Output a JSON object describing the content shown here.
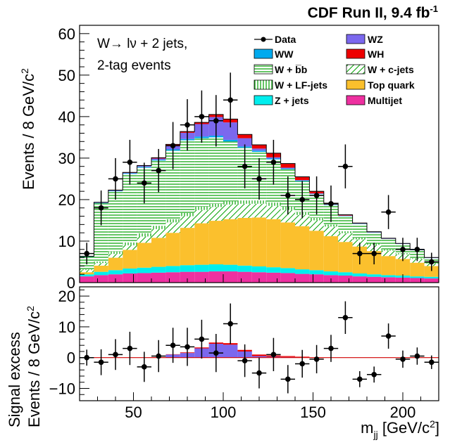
{
  "header": {
    "title": "CDF Run II, 9.4 fb",
    "title_sup": "-1"
  },
  "chart_data": [
    {
      "type": "bar",
      "stacked": true,
      "histogram": true,
      "annotation_lines": [
        "W→ lν + 2 jets,",
        "2-tag events"
      ],
      "xlabel": "m_jj [GeV/c^2]",
      "ylabel": "Events / 8 GeV/c^2",
      "xlim": [
        20,
        220
      ],
      "ylim": [
        0,
        62
      ],
      "xticks": [
        50,
        100,
        150,
        200
      ],
      "yticks": [
        0,
        10,
        20,
        30,
        40,
        50,
        60
      ],
      "bin_edges": [
        20,
        28,
        36,
        44,
        52,
        60,
        68,
        76,
        84,
        92,
        100,
        108,
        116,
        124,
        132,
        140,
        148,
        156,
        164,
        172,
        180,
        188,
        196,
        204,
        212,
        220
      ],
      "legend": [
        {
          "label": "Data",
          "kind": "data"
        },
        {
          "label": "WZ",
          "color": "#7b68ee"
        },
        {
          "label": "WW",
          "color": "#00aaee"
        },
        {
          "label": "WH",
          "color": "#ee0000"
        },
        {
          "label": "W + b̅b",
          "color": "#ffffff",
          "hatch": "#00a000"
        },
        {
          "label": "W + c-jets",
          "color": "#ffffff",
          "hatch": "diag"
        },
        {
          "label": "W + LF-jets",
          "color": "#ffffff",
          "hatch": "vert"
        },
        {
          "label": "Top quark",
          "color": "#fbc02d"
        },
        {
          "label": "Z + jets",
          "color": "#00eeee"
        },
        {
          "label": "Multijet",
          "color": "#ee30a0"
        }
      ],
      "series": [
        {
          "name": "Multijet",
          "values": [
            1.5,
            1.8,
            2.0,
            2.2,
            2.3,
            2.4,
            2.5,
            2.6,
            2.6,
            2.7,
            2.7,
            2.6,
            2.5,
            2.4,
            2.3,
            2.1,
            2.0,
            1.8,
            1.7,
            1.5,
            1.4,
            1.3,
            1.2,
            1.1,
            1.0
          ]
        },
        {
          "name": "Z + jets",
          "values": [
            0.5,
            0.8,
            1.0,
            1.2,
            1.3,
            1.4,
            1.5,
            1.6,
            1.7,
            1.7,
            1.6,
            1.5,
            1.4,
            1.3,
            1.2,
            1.1,
            1.0,
            0.9,
            0.8,
            0.7,
            0.6,
            0.5,
            0.5,
            0.4,
            0.4
          ]
        },
        {
          "name": "Top quark",
          "values": [
            0.5,
            1.5,
            3.0,
            4.5,
            6.0,
            7.0,
            8.0,
            9.0,
            10.0,
            10.5,
            11.0,
            11.5,
            11.8,
            11.6,
            11.0,
            10.4,
            9.5,
            8.5,
            7.3,
            6.5,
            5.6,
            4.6,
            4.0,
            3.3,
            2.6
          ]
        },
        {
          "name": "W + c-jets",
          "values": [
            0.5,
            0.6,
            0.9,
            1.1,
            1.5,
            2.1,
            2.5,
            2.8,
            3.2,
            3.3,
            3.5,
            3.4,
            3.3,
            3.2,
            3.0,
            2.7,
            2.5,
            2.3,
            2.1,
            1.7,
            1.5,
            1.3,
            1.1,
            0.9,
            0.6
          ]
        },
        {
          "name": "W + LF-jets",
          "values": [
            0.2,
            0.4,
            0.6,
            0.7,
            0.8,
            0.8,
            0.8,
            0.8,
            0.8,
            0.8,
            0.8,
            0.8,
            0.8,
            0.8,
            0.8,
            0.7,
            0.6,
            0.5,
            0.5,
            0.4,
            0.3,
            0.3,
            0.3,
            0.2,
            0.1
          ]
        },
        {
          "name": "W + b̅b",
          "values": [
            3.0,
            14.0,
            14.5,
            16.5,
            15.8,
            15.7,
            16.5,
            17.5,
            16.5,
            16.0,
            14.4,
            12.7,
            11.7,
            10.4,
            9.0,
            7.4,
            5.7,
            4.7,
            3.6,
            3.3,
            2.6,
            2.5,
            2.2,
            1.9,
            1.2
          ]
        },
        {
          "name": "WW",
          "values": [
            0.05,
            0.1,
            0.1,
            0.15,
            0.2,
            0.2,
            0.3,
            0.3,
            0.4,
            0.4,
            0.4,
            0.3,
            0.3,
            0.2,
            0.2,
            0.2,
            0.1,
            0.1,
            0.1,
            0.1,
            0.1,
            0.05,
            0.05,
            0.05,
            0.05
          ]
        },
        {
          "name": "WZ",
          "values": [
            0.05,
            0.1,
            0.1,
            0.1,
            0.2,
            0.3,
            1.0,
            1.5,
            3.0,
            4.5,
            4.2,
            2.0,
            0.5,
            0.3,
            0.2,
            0.1,
            0.1,
            0.05,
            0.05,
            0.05,
            0.05,
            0.05,
            0.05,
            0.05,
            0.05
          ]
        },
        {
          "name": "WH",
          "values": [
            0.05,
            0.05,
            0.1,
            0.1,
            0.1,
            0.2,
            0.2,
            0.3,
            0.4,
            0.6,
            0.8,
            0.9,
            0.9,
            1.0,
            1.0,
            0.8,
            0.5,
            0.3,
            0.2,
            0.1,
            0.1,
            0.1,
            0.05,
            0.05,
            0.05
          ]
        }
      ],
      "data_points": {
        "x": [
          24,
          32,
          40,
          48,
          56,
          64,
          72,
          80,
          88,
          96,
          104,
          112,
          120,
          128,
          136,
          144,
          152,
          160,
          168,
          176,
          184,
          192,
          200,
          208,
          216
        ],
        "y": [
          7,
          18,
          25,
          29,
          24,
          27,
          33,
          38,
          40,
          39,
          44,
          28,
          25,
          29,
          21,
          20,
          21,
          19,
          28,
          7,
          7,
          17,
          8,
          8,
          5
        ],
        "yerr": [
          2.6,
          4.2,
          5,
          5.4,
          4.9,
          5.2,
          5.7,
          6.2,
          6.3,
          6.2,
          6.6,
          5.3,
          5,
          5.4,
          4.6,
          4.5,
          4.6,
          4.4,
          5.3,
          2.6,
          2.6,
          4.1,
          2.8,
          2.8,
          2.2
        ]
      }
    },
    {
      "type": "bar",
      "histogram": true,
      "xlabel": "m_jj [GeV/c^2]",
      "ylabel_line1": "Signal excess",
      "ylabel_line2": "Events / 8 GeV/c^2",
      "xlim": [
        20,
        220
      ],
      "ylim": [
        -14,
        23
      ],
      "xticks": [
        50,
        100,
        150,
        200
      ],
      "yticks": [
        -10,
        0,
        10,
        20
      ],
      "xtick_labels": [
        "50",
        "100",
        "150",
        "200"
      ],
      "ytick_labels": [
        "−10",
        "0",
        "10",
        "20"
      ],
      "series": [
        {
          "name": "WZ",
          "values": [
            0,
            0,
            0,
            0,
            0,
            0,
            1.0,
            1.5,
            3.0,
            4.5,
            4.2,
            2.0,
            0.5,
            0.3,
            0.2,
            0.1,
            0,
            0,
            0,
            0,
            0,
            0,
            0,
            0,
            0
          ]
        },
        {
          "name": "WH",
          "values": [
            0,
            0,
            0,
            0,
            0,
            0.1,
            0.1,
            0.2,
            0.3,
            0.4,
            0.5,
            0.5,
            0.5,
            0.4,
            0.3,
            0.2,
            0.1,
            0,
            0,
            0,
            0,
            0,
            0,
            0,
            0
          ]
        }
      ],
      "data_points": {
        "x": [
          24,
          32,
          40,
          48,
          56,
          64,
          72,
          80,
          88,
          96,
          104,
          112,
          120,
          128,
          136,
          144,
          152,
          160,
          168,
          176,
          184,
          192,
          200,
          208,
          216
        ],
        "y": [
          0,
          -1.5,
          1,
          3,
          -3,
          0.5,
          4,
          3.5,
          6,
          1.5,
          11,
          -1,
          -5,
          1,
          -7,
          -2,
          -0.5,
          3,
          13,
          -7,
          -5.5,
          7,
          -0.5,
          0.5,
          -1.5
        ],
        "yerr": [
          2.6,
          4.2,
          5,
          5.4,
          4.9,
          5.2,
          5.7,
          6.2,
          6.3,
          6.2,
          6.6,
          5.3,
          5,
          5.4,
          4.6,
          4.5,
          4.6,
          4.4,
          5.3,
          2.6,
          2.6,
          4.1,
          2.8,
          2.8,
          2.2
        ]
      }
    }
  ]
}
